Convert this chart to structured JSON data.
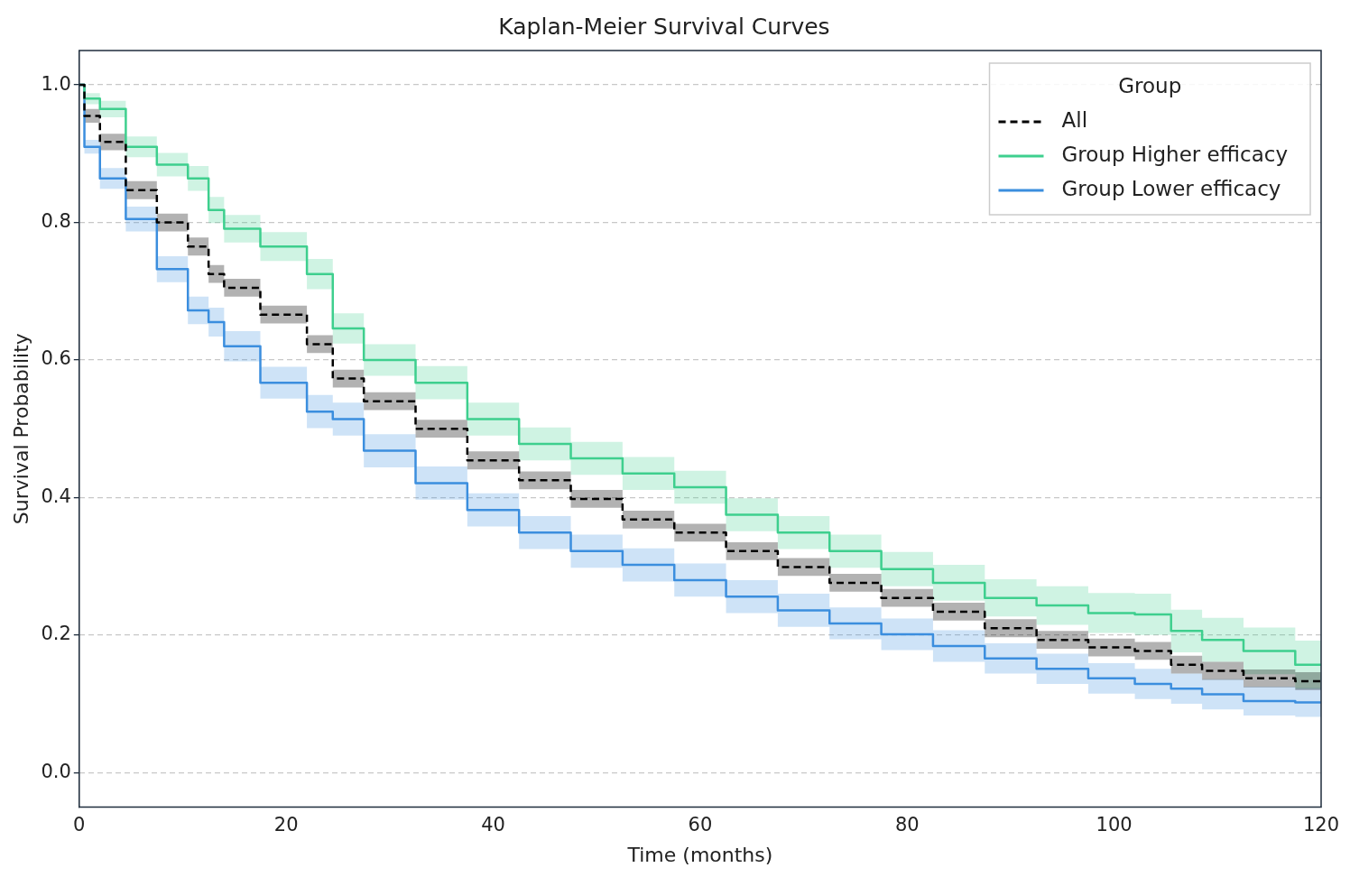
{
  "chart_data": {
    "type": "step",
    "title": "Kaplan-Meier Survival Curves",
    "xlabel": "Time (months)",
    "ylabel": "Survival Probability",
    "legend_title": "Group",
    "legend": "top right",
    "grid": "y",
    "xlim": [
      0,
      120
    ],
    "xticks": [
      0,
      20,
      40,
      60,
      80,
      100,
      120
    ],
    "ylim": [
      -0.05,
      1.05
    ],
    "yticks": [
      {
        "value": 0,
        "label": "0.0"
      },
      0.2,
      0.4,
      0.6,
      0.8,
      {
        "value": 1,
        "label": "1.0"
      }
    ],
    "x": [
      0,
      1,
      3,
      6,
      9,
      12,
      13,
      15,
      20,
      24,
      25,
      30,
      35,
      40,
      45,
      50,
      55,
      60,
      65,
      70,
      75,
      80,
      85,
      90,
      95,
      100,
      104,
      107,
      110,
      115,
      120
    ],
    "series": [
      {
        "name": "All",
        "color": "#000000",
        "line_style": "dashed",
        "values": [
          1.0,
          0.955,
          0.917,
          0.847,
          0.8,
          0.765,
          0.725,
          0.705,
          0.666,
          0.623,
          0.573,
          0.54,
          0.5,
          0.454,
          0.425,
          0.398,
          0.368,
          0.349,
          0.322,
          0.299,
          0.276,
          0.254,
          0.234,
          0.21,
          0.193,
          0.182,
          0.177,
          0.157,
          0.148,
          0.137,
          0.133
        ],
        "lower": [
          1.0,
          0.945,
          0.905,
          0.834,
          0.787,
          0.752,
          0.712,
          0.692,
          0.653,
          0.61,
          0.56,
          0.527,
          0.487,
          0.441,
          0.412,
          0.385,
          0.355,
          0.336,
          0.309,
          0.286,
          0.263,
          0.241,
          0.221,
          0.197,
          0.18,
          0.169,
          0.164,
          0.144,
          0.135,
          0.124,
          0.12
        ],
        "upper": [
          1.0,
          0.965,
          0.929,
          0.86,
          0.813,
          0.778,
          0.738,
          0.718,
          0.679,
          0.636,
          0.586,
          0.553,
          0.513,
          0.467,
          0.438,
          0.411,
          0.381,
          0.362,
          0.335,
          0.312,
          0.289,
          0.267,
          0.247,
          0.223,
          0.206,
          0.195,
          0.19,
          0.17,
          0.161,
          0.15,
          0.146
        ]
      },
      {
        "name": "Group Higher efficacy",
        "color": "#3ecf8e",
        "line_style": "solid",
        "values": [
          1.0,
          0.98,
          0.965,
          0.91,
          0.884,
          0.864,
          0.818,
          0.791,
          0.765,
          0.725,
          0.646,
          0.6,
          0.567,
          0.514,
          0.478,
          0.457,
          0.435,
          0.415,
          0.375,
          0.349,
          0.322,
          0.296,
          0.276,
          0.254,
          0.243,
          0.232,
          0.23,
          0.206,
          0.193,
          0.177,
          0.157
        ],
        "lower": [
          1.0,
          0.972,
          0.953,
          0.895,
          0.867,
          0.846,
          0.799,
          0.771,
          0.744,
          0.703,
          0.624,
          0.577,
          0.543,
          0.49,
          0.454,
          0.433,
          0.411,
          0.391,
          0.351,
          0.325,
          0.298,
          0.271,
          0.25,
          0.227,
          0.215,
          0.203,
          0.2,
          0.175,
          0.161,
          0.143,
          0.122
        ],
        "upper": [
          1.0,
          0.988,
          0.977,
          0.925,
          0.901,
          0.882,
          0.837,
          0.811,
          0.786,
          0.747,
          0.668,
          0.623,
          0.591,
          0.538,
          0.502,
          0.481,
          0.459,
          0.439,
          0.399,
          0.373,
          0.346,
          0.321,
          0.302,
          0.281,
          0.271,
          0.261,
          0.26,
          0.237,
          0.225,
          0.211,
          0.192
        ]
      },
      {
        "name": "Group Lower efficacy",
        "color": "#3b8ede",
        "line_style": "solid",
        "values": [
          1.0,
          0.91,
          0.864,
          0.805,
          0.732,
          0.672,
          0.655,
          0.62,
          0.567,
          0.525,
          0.514,
          0.468,
          0.421,
          0.382,
          0.349,
          0.322,
          0.302,
          0.28,
          0.256,
          0.236,
          0.217,
          0.201,
          0.184,
          0.166,
          0.151,
          0.137,
          0.129,
          0.122,
          0.114,
          0.104,
          0.102
        ],
        "lower": [
          1.0,
          0.9,
          0.849,
          0.787,
          0.713,
          0.652,
          0.634,
          0.598,
          0.544,
          0.501,
          0.49,
          0.444,
          0.397,
          0.358,
          0.325,
          0.298,
          0.278,
          0.256,
          0.232,
          0.212,
          0.194,
          0.178,
          0.161,
          0.144,
          0.129,
          0.115,
          0.107,
          0.1,
          0.092,
          0.083,
          0.081
        ],
        "upper": [
          1.0,
          0.92,
          0.879,
          0.823,
          0.751,
          0.692,
          0.676,
          0.642,
          0.59,
          0.549,
          0.538,
          0.492,
          0.445,
          0.406,
          0.373,
          0.346,
          0.326,
          0.304,
          0.28,
          0.26,
          0.24,
          0.224,
          0.207,
          0.188,
          0.173,
          0.159,
          0.151,
          0.144,
          0.136,
          0.125,
          0.123
        ]
      }
    ]
  }
}
